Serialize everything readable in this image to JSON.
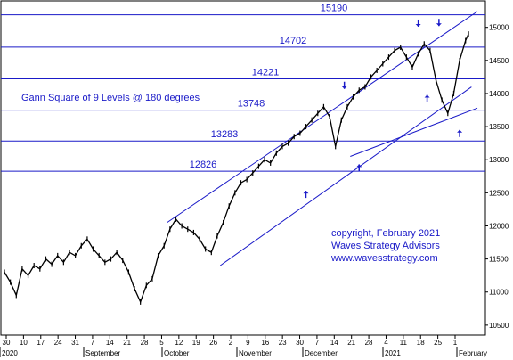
{
  "chart_data": {
    "type": "line",
    "title": "Gann Square of 9 Levels @ 180 degrees",
    "ylim": [
      10350,
      15400
    ],
    "y_ticks": [
      "10500",
      "11000",
      "11500",
      "12000",
      "12500",
      "13000",
      "13500",
      "14000",
      "14500",
      "15000"
    ],
    "x_day_ticks": [
      "30",
      "10",
      "17",
      "24",
      "31",
      "7",
      "14",
      "21",
      "28",
      "5",
      "12",
      "19",
      "26",
      "2",
      "9",
      "16",
      "23",
      "30",
      "7",
      "14",
      "21",
      "28",
      "4",
      "11",
      "18",
      "25",
      "1"
    ],
    "x_months": [
      "2020",
      "September",
      "October",
      "November",
      "December",
      "2021",
      "February"
    ],
    "gann_levels": [
      {
        "label": "15190",
        "value": 15190
      },
      {
        "label": "14702",
        "value": 14702
      },
      {
        "label": "14221",
        "value": 14221
      },
      {
        "label": "13748",
        "value": 13748
      },
      {
        "label": "13283",
        "value": 13283
      },
      {
        "label": "12826",
        "value": 12826
      }
    ],
    "series": [
      {
        "x": [
          0,
          2,
          4,
          6,
          8,
          10,
          12,
          14,
          16,
          18,
          20,
          22,
          24,
          26,
          28,
          30,
          32,
          34,
          36,
          38,
          40,
          42,
          44,
          46,
          48,
          50,
          52,
          54,
          56,
          58,
          60,
          62,
          64,
          66,
          68,
          70,
          72,
          74,
          76,
          78,
          80,
          82,
          84,
          86,
          88,
          90,
          92,
          94,
          96,
          98,
          100,
          102,
          104,
          106,
          108,
          110,
          112,
          114,
          116,
          118,
          120,
          122,
          124,
          126,
          128,
          130,
          132,
          134,
          136,
          138,
          140,
          142,
          144,
          146,
          148,
          150,
          152,
          154,
          156,
          157
        ],
        "values": [
          11300,
          11150,
          10950,
          11350,
          11250,
          11400,
          11350,
          11500,
          11420,
          11550,
          11450,
          11600,
          11550,
          11700,
          11800,
          11650,
          11550,
          11450,
          11500,
          11600,
          11480,
          11300,
          11050,
          10850,
          11100,
          11200,
          11550,
          11700,
          11950,
          12100,
          12000,
          11950,
          11900,
          11800,
          11650,
          11600,
          11850,
          12050,
          12300,
          12500,
          12650,
          12700,
          12800,
          12900,
          13000,
          12950,
          13100,
          13200,
          13250,
          13350,
          13400,
          13500,
          13600,
          13700,
          13800,
          13650,
          13200,
          13600,
          13800,
          13950,
          14050,
          14100,
          14250,
          14350,
          14450,
          14550,
          14650,
          14700,
          14550,
          14400,
          14600,
          14750,
          14650,
          14200,
          13900,
          13700,
          14000,
          14500,
          14800,
          14900
        ]
      }
    ],
    "arrows_down": [
      {
        "x": 115,
        "value": 13900
      },
      {
        "x": 140,
        "value": 14840
      },
      {
        "x": 147,
        "value": 14850
      }
    ],
    "arrows_up": [
      {
        "x": 102,
        "value": 12700
      },
      {
        "x": 120,
        "value": 13100
      },
      {
        "x": 143,
        "value": 14150
      },
      {
        "x": 154,
        "value": 13620
      }
    ],
    "trendlines": [
      {
        "x0": 55,
        "y0": 12050,
        "x1": 160,
        "y1": 15240
      },
      {
        "x0": 73,
        "y0": 11400,
        "x1": 158,
        "y1": 14100
      },
      {
        "x0": 117,
        "y0": 13050,
        "x1": 160,
        "y1": 13780
      }
    ],
    "annotations": [
      "copyright, February 2021",
      "Waves Strategy Advisors",
      "www.wavesstrategy.com"
    ]
  },
  "colors": {
    "levels": "#1a1ac8",
    "trend": "#1a1ac8",
    "price": "#000000",
    "arrow": "#1a1ac8"
  }
}
